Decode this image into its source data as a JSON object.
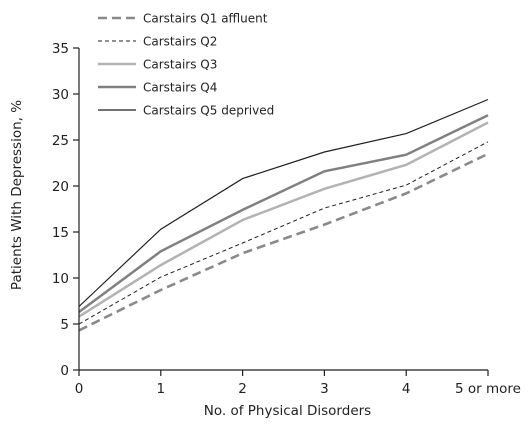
{
  "chart_data": {
    "type": "line",
    "title": "",
    "xlabel": "No. of Physical Disorders",
    "ylabel": "Patients With Depression, %",
    "categories": [
      "0",
      "1",
      "2",
      "3",
      "4",
      "5 or more"
    ],
    "ylim": [
      0,
      35
    ],
    "yticks": [
      0,
      5,
      10,
      15,
      20,
      25,
      30,
      35
    ],
    "grid": false,
    "legend_position": "top-left",
    "series": [
      {
        "name": "Carstairs Q1 affluent",
        "values": [
          4.3,
          8.7,
          12.7,
          15.8,
          19.2,
          23.5
        ],
        "color": "#8a8a8a",
        "line_style": "dashed",
        "width": 2.6
      },
      {
        "name": "Carstairs Q2",
        "values": [
          5.0,
          10.1,
          13.8,
          17.6,
          20.1,
          24.8
        ],
        "color": "#231f20",
        "line_style": "dashed",
        "width": 1.0
      },
      {
        "name": "Carstairs Q3",
        "values": [
          5.8,
          11.4,
          16.3,
          19.7,
          22.3,
          26.9
        ],
        "color": "#b3b3b3",
        "line_style": "solid",
        "width": 2.5
      },
      {
        "name": "Carstairs Q4",
        "values": [
          6.3,
          12.9,
          17.4,
          21.6,
          23.4,
          27.7
        ],
        "color": "#808080",
        "line_style": "solid",
        "width": 2.5
      },
      {
        "name": "Carstairs Q5 deprived",
        "values": [
          6.9,
          15.3,
          20.8,
          23.7,
          25.7,
          29.4
        ],
        "color": "#231f20",
        "line_style": "solid",
        "width": 1.2
      }
    ]
  }
}
